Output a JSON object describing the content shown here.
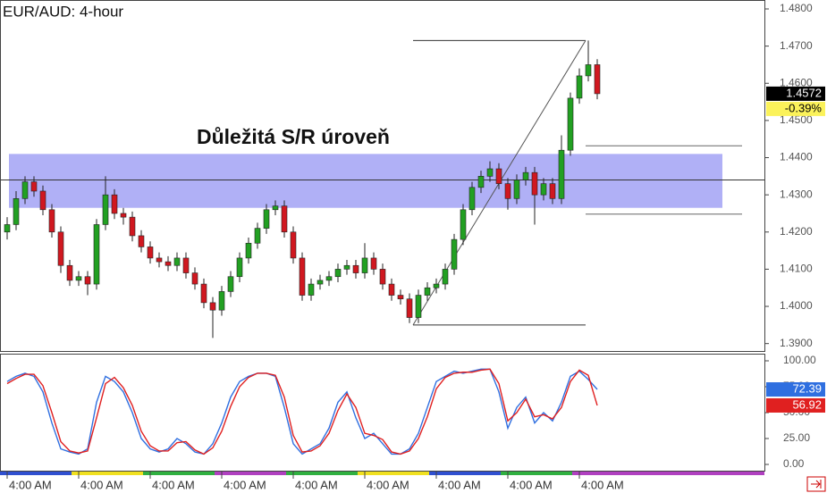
{
  "chart_data": [
    {
      "type": "candlestick",
      "title": "EUR/AUD: 4-hour",
      "annotation": "Důležitá S/R úroveň",
      "change_label": "-0.39%",
      "up_color": "#22a022",
      "down_color": "#d01820",
      "categories": [
        "4:00 AM",
        null,
        null,
        null,
        null,
        null,
        null,
        null,
        "4:00 AM",
        null,
        null,
        null,
        null,
        null,
        null,
        null,
        "4:00 AM",
        null,
        null,
        null,
        null,
        null,
        null,
        null,
        "4:00 AM",
        null,
        null,
        null,
        null,
        null,
        null,
        null,
        "4:00 AM",
        null,
        null,
        null,
        null,
        null,
        null,
        null,
        "4:00 AM",
        null,
        null,
        null,
        null,
        null,
        null,
        null,
        "4:00 AM",
        null,
        null,
        null,
        null,
        null,
        null,
        null,
        "4:00 AM",
        null,
        null,
        null,
        null,
        null,
        null,
        null,
        "4:00 AM",
        null,
        null
      ],
      "open": [
        1.42,
        1.422,
        1.429,
        1.4335,
        1.431,
        1.426,
        1.42,
        1.411,
        1.407,
        1.408,
        1.406,
        1.422,
        1.43,
        1.425,
        1.424,
        1.419,
        1.416,
        1.413,
        1.412,
        1.411,
        1.413,
        1.409,
        1.406,
        1.401,
        1.399,
        1.404,
        1.408,
        1.413,
        1.417,
        1.421,
        1.426,
        1.427,
        1.42,
        1.413,
        1.403,
        1.406,
        1.407,
        1.408,
        1.41,
        1.411,
        1.409,
        1.413,
        1.41,
        1.406,
        1.403,
        1.402,
        1.397,
        1.403,
        1.405,
        1.406,
        1.41,
        1.418,
        1.426,
        1.432,
        1.435,
        1.437,
        1.433,
        1.429,
        1.434,
        1.436,
        1.43,
        1.433,
        1.429,
        1.442,
        1.456,
        1.462,
        1.465
      ],
      "high": [
        1.424,
        1.431,
        1.435,
        1.435,
        1.4325,
        1.4275,
        1.4215,
        1.4125,
        1.4095,
        1.4095,
        1.4235,
        1.435,
        1.4315,
        1.4265,
        1.4255,
        1.4205,
        1.4175,
        1.4145,
        1.4135,
        1.4145,
        1.4145,
        1.4105,
        1.4075,
        1.4025,
        1.4055,
        1.4095,
        1.4145,
        1.4185,
        1.4225,
        1.4275,
        1.4285,
        1.4285,
        1.4215,
        1.4145,
        1.4075,
        1.4085,
        1.4095,
        1.4115,
        1.4125,
        1.4125,
        1.417,
        1.4145,
        1.4115,
        1.4075,
        1.4045,
        1.4035,
        1.4045,
        1.4065,
        1.4075,
        1.4115,
        1.4195,
        1.4275,
        1.4335,
        1.4365,
        1.439,
        1.4385,
        1.4345,
        1.4355,
        1.4375,
        1.4375,
        1.4345,
        1.4345,
        1.446,
        1.4575,
        1.464,
        1.4715,
        1.4665
      ],
      "low": [
        1.418,
        1.4205,
        1.4275,
        1.4295,
        1.4245,
        1.4185,
        1.409,
        1.4055,
        1.4055,
        1.403,
        1.4045,
        1.4205,
        1.4235,
        1.422,
        1.4175,
        1.4145,
        1.4115,
        1.4105,
        1.4095,
        1.4095,
        1.4075,
        1.4045,
        1.3995,
        1.3915,
        1.3975,
        1.4025,
        1.4065,
        1.4115,
        1.4155,
        1.4195,
        1.4245,
        1.4185,
        1.4115,
        1.4015,
        1.4015,
        1.4045,
        1.4055,
        1.4065,
        1.4085,
        1.4075,
        1.4075,
        1.4085,
        1.4045,
        1.4015,
        1.4005,
        1.3955,
        1.3955,
        1.4015,
        1.4035,
        1.4045,
        1.4085,
        1.4165,
        1.4245,
        1.4305,
        1.4335,
        1.4315,
        1.426,
        1.4275,
        1.4325,
        1.422,
        1.4285,
        1.4275,
        1.4275,
        1.4405,
        1.4545,
        1.4605,
        1.4557
      ],
      "close": [
        1.422,
        1.429,
        1.4335,
        1.431,
        1.426,
        1.42,
        1.411,
        1.407,
        1.408,
        1.406,
        1.422,
        1.43,
        1.425,
        1.424,
        1.419,
        1.416,
        1.413,
        1.412,
        1.411,
        1.413,
        1.409,
        1.406,
        1.401,
        1.399,
        1.404,
        1.408,
        1.413,
        1.417,
        1.421,
        1.426,
        1.427,
        1.42,
        1.413,
        1.403,
        1.406,
        1.407,
        1.408,
        1.41,
        1.411,
        1.409,
        1.413,
        1.41,
        1.406,
        1.403,
        1.402,
        1.397,
        1.403,
        1.405,
        1.406,
        1.41,
        1.418,
        1.426,
        1.432,
        1.435,
        1.437,
        1.433,
        1.429,
        1.434,
        1.436,
        1.43,
        1.433,
        1.429,
        1.442,
        1.456,
        1.462,
        1.465,
        1.4572
      ],
      "sr_zone": [
        1.4265,
        1.441
      ],
      "sr_line": 1.434,
      "swing": [
        1.395,
        1.4715
      ],
      "projection_levels": [
        1.4432,
        1.4248
      ],
      "ylim": [
        1.388,
        1.4824
      ],
      "yticks": [
        {
          "value": 1.48,
          "label": "1.4800"
        },
        {
          "value": 1.47,
          "label": "1.4700"
        },
        {
          "value": 1.46,
          "label": "1.4600"
        },
        {
          "value": 1.45,
          "label": "1.4500"
        },
        {
          "value": 1.44,
          "label": "1.4400"
        },
        {
          "value": 1.43,
          "label": "1.4300"
        },
        {
          "value": 1.42,
          "label": "1.4200"
        },
        {
          "value": 1.41,
          "label": "1.4100"
        },
        {
          "value": 1.4,
          "label": "1.4000"
        },
        {
          "value": 1.39,
          "label": "1.3900"
        }
      ]
    },
    {
      "type": "line",
      "series": [
        {
          "color": "#2f6fe0",
          "values": [
            80,
            85,
            88,
            85,
            70,
            40,
            15,
            12,
            10,
            15,
            60,
            85,
            80,
            70,
            50,
            25,
            15,
            12,
            15,
            25,
            20,
            12,
            10,
            20,
            40,
            65,
            80,
            85,
            88,
            88,
            85,
            55,
            20,
            10,
            15,
            20,
            35,
            60,
            70,
            45,
            25,
            30,
            20,
            10,
            10,
            15,
            30,
            55,
            80,
            85,
            90,
            88,
            90,
            92,
            92,
            70,
            35,
            55,
            65,
            40,
            50,
            42,
            60,
            85,
            90,
            82,
            72.39
          ]
        },
        {
          "color": "#e02020",
          "values": [
            78,
            83,
            87,
            87,
            76,
            50,
            22,
            13,
            11,
            13,
            45,
            78,
            84,
            74,
            57,
            32,
            18,
            13,
            13,
            21,
            22,
            14,
            10,
            16,
            32,
            56,
            75,
            84,
            88,
            88,
            86,
            65,
            28,
            12,
            13,
            18,
            30,
            52,
            68,
            55,
            30,
            28,
            24,
            12,
            10,
            13,
            25,
            46,
            73,
            84,
            88,
            89,
            89,
            91,
            92,
            78,
            42,
            50,
            63,
            46,
            48,
            44,
            55,
            80,
            91,
            86,
            56.92
          ]
        }
      ],
      "ylim": [
        0,
        100
      ],
      "yticks": [
        {
          "value": 100,
          "label": "100.00"
        },
        {
          "value": 75,
          "label": "75.00"
        },
        {
          "value": 50,
          "label": "50.00"
        },
        {
          "value": 25,
          "label": "25.00"
        },
        {
          "value": 0,
          "label": "0.00"
        }
      ]
    }
  ]
}
